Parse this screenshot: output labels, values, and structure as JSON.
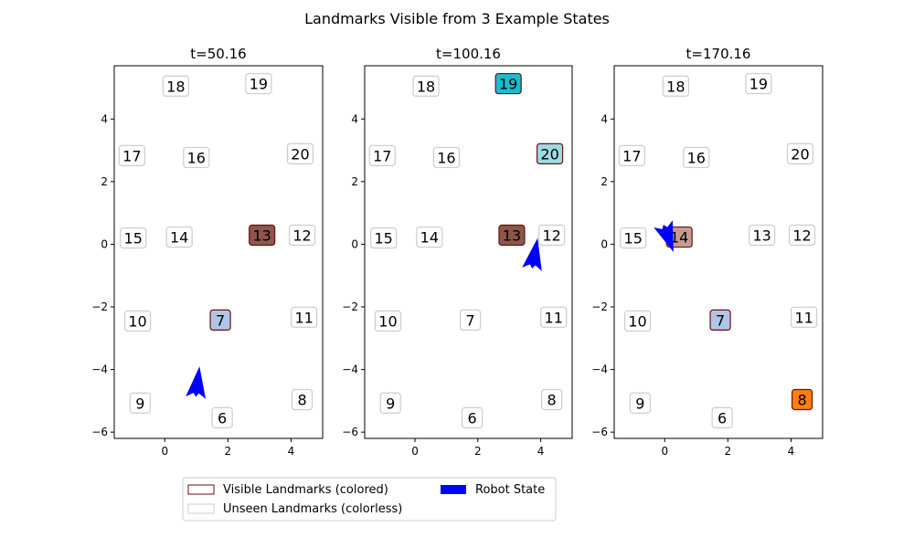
{
  "chart_data": {
    "type": "scatter",
    "title": "Landmarks Visible from 3 Example States",
    "xlabel": "",
    "ylabel": "",
    "xlim": [
      -1.6,
      5.0
    ],
    "ylim": [
      -6.2,
      5.7
    ],
    "xticks": [
      0,
      2,
      4
    ],
    "yticks": [
      -6,
      -4,
      -2,
      0,
      2,
      4
    ],
    "grid": false,
    "legend_position": "lower center",
    "landmarks": [
      {
        "id": "6",
        "x": 1.82,
        "y": -5.54
      },
      {
        "id": "7",
        "x": 1.76,
        "y": -2.42
      },
      {
        "id": "8",
        "x": 4.35,
        "y": -4.96
      },
      {
        "id": "9",
        "x": -0.78,
        "y": -5.07
      },
      {
        "id": "10",
        "x": -0.86,
        "y": -2.45
      },
      {
        "id": "11",
        "x": 4.41,
        "y": -2.33
      },
      {
        "id": "12",
        "x": 4.35,
        "y": 0.29
      },
      {
        "id": "13",
        "x": 3.08,
        "y": 0.29
      },
      {
        "id": "14",
        "x": 0.46,
        "y": 0.23
      },
      {
        "id": "15",
        "x": -1.0,
        "y": 0.2
      },
      {
        "id": "16",
        "x": 1.0,
        "y": 2.77
      },
      {
        "id": "17",
        "x": -1.04,
        "y": 2.83
      },
      {
        "id": "18",
        "x": 0.35,
        "y": 5.05
      },
      {
        "id": "19",
        "x": 2.97,
        "y": 5.13
      },
      {
        "id": "20",
        "x": 4.29,
        "y": 2.89
      }
    ],
    "panels": [
      {
        "title": "t=50.16",
        "robot": {
          "x": 0.98,
          "y": -4.9,
          "tip_x": 1.1,
          "tip_y": -3.9,
          "heading_deg": 83
        },
        "visible": [
          {
            "id": "13",
            "color": "#8c564b"
          },
          {
            "id": "7",
            "color": "#aec7e8"
          }
        ]
      },
      {
        "title": "t=100.16",
        "robot": {
          "x": 3.72,
          "y": -0.8,
          "tip_x": 3.9,
          "tip_y": 0.2,
          "heading_deg": 80
        },
        "visible": [
          {
            "id": "19",
            "color": "#17becf"
          },
          {
            "id": "20",
            "color": "#9edae5"
          },
          {
            "id": "13",
            "color": "#8c564b"
          }
        ]
      },
      {
        "title": "t=170.16",
        "robot": {
          "x": -0.05,
          "y": 0.65,
          "tip_x": 0.28,
          "tip_y": -0.25,
          "heading_deg": -70
        },
        "visible": [
          {
            "id": "14",
            "color": "#c49c94"
          },
          {
            "id": "7",
            "color": "#aec7e8"
          },
          {
            "id": "8",
            "color": "#ff7f0e"
          }
        ]
      }
    ],
    "legend": [
      {
        "label": "Visible Landmarks (colored)",
        "swatch": "outline",
        "color": "#6b0f0f"
      },
      {
        "label": "Unseen Landmarks (colorless)",
        "swatch": "outline",
        "color": "#cccccc"
      },
      {
        "label": "Robot State",
        "swatch": "filled",
        "color": "#0000ff"
      }
    ]
  },
  "colors": {
    "robot": "#0000ff",
    "visible_edge": "#6b0f0f",
    "unseen_edge": "#cccccc"
  }
}
